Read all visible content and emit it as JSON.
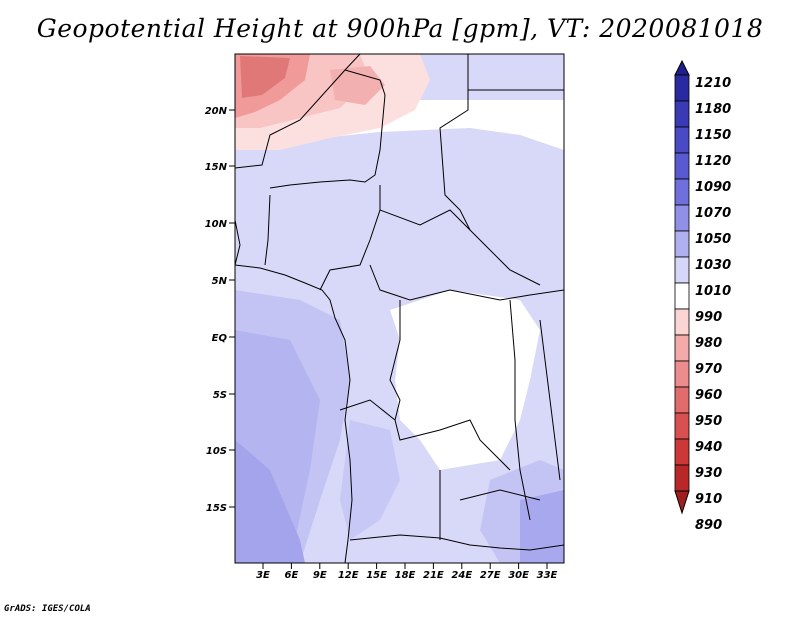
{
  "title": "Geopotential Height at 900hPa [gpm], VT: 2020081018",
  "credit": "GrADS: IGES/COLA",
  "map": {
    "lat_labels": [
      "20N",
      "15N",
      "10N",
      "5N",
      "EQ",
      "5S",
      "10S",
      "15S"
    ],
    "lon_labels": [
      "3E",
      "6E",
      "9E",
      "12E",
      "15E",
      "18E",
      "21E",
      "24E",
      "27E",
      "30E",
      "33E"
    ]
  },
  "colorbar": {
    "labels": [
      "1210",
      "1180",
      "1150",
      "1120",
      "1090",
      "1070",
      "1050",
      "1030",
      "1010",
      "990",
      "980",
      "970",
      "960",
      "950",
      "940",
      "930",
      "910",
      "890"
    ],
    "colors": [
      "#1e1e8c",
      "#2a2aa0",
      "#3a3ab4",
      "#4a4ac4",
      "#5a5ad0",
      "#7070dc",
      "#9090e6",
      "#b0b0f0",
      "#d6d6f8",
      "#ffffff",
      "#fbd4d4",
      "#f5aaaa",
      "#ec8c8c",
      "#e06c6c",
      "#d85050",
      "#cc3838",
      "#b82828",
      "#a01e1e"
    ]
  }
}
